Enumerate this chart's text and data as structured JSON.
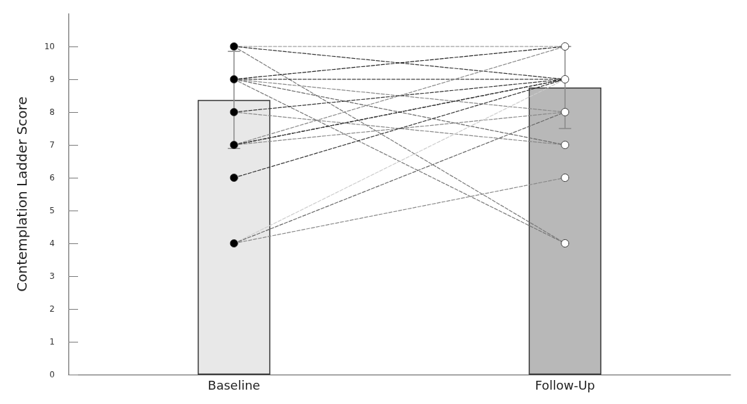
{
  "chart_data": {
    "type": "bar",
    "ylabel": "Contemplation Ladder Score",
    "categories": [
      "Baseline",
      "Follow-Up"
    ],
    "ylim": [
      0,
      11
    ],
    "yticks": [
      0,
      1,
      2,
      3,
      4,
      5,
      6,
      7,
      8,
      9,
      10
    ],
    "grid": false,
    "series": [
      {
        "colors": [
          "#e8e8e8",
          "#b8b8b8"
        ],
        "values": [
          8.37,
          8.75
        ],
        "errors": [
          1.48,
          1.25
        ]
      },
      {
        "type": "line",
        "color": "#888888",
        "values": [
          10,
          10
        ],
        "line_style": "dashed",
        "marker": "none"
      },
      {
        "type": "line",
        "color": "#333333",
        "values": [
          10,
          9
        ],
        "line_style": "dashed",
        "marker": "none"
      },
      {
        "type": "line",
        "color": "#777777",
        "values": [
          10,
          4
        ],
        "line_style": "dashed",
        "marker": "none"
      },
      {
        "type": "line",
        "color": "#222222",
        "values": [
          9,
          10
        ],
        "line_style": "dashed",
        "marker": "none"
      },
      {
        "type": "line",
        "color": "#111111",
        "values": [
          9,
          9
        ],
        "line_style": "dashed",
        "marker": "none"
      },
      {
        "type": "line",
        "color": "#888888",
        "values": [
          9,
          8
        ],
        "line_style": "dashed",
        "marker": "none"
      },
      {
        "type": "line",
        "color": "#666666",
        "values": [
          9,
          7
        ],
        "line_style": "dashed",
        "marker": "none"
      },
      {
        "type": "line",
        "color": "#777777",
        "values": [
          9,
          4
        ],
        "line_style": "dashed",
        "marker": "none"
      },
      {
        "type": "line",
        "color": "#333333",
        "values": [
          8,
          9
        ],
        "line_style": "dashed",
        "marker": "none"
      },
      {
        "type": "line",
        "color": "#888888",
        "values": [
          8,
          7
        ],
        "line_style": "dashed",
        "marker": "none"
      },
      {
        "type": "line",
        "color": "#888888",
        "values": [
          7,
          10
        ],
        "line_style": "dashed",
        "marker": "none"
      },
      {
        "type": "line",
        "color": "#111111",
        "values": [
          7,
          9
        ],
        "line_style": "dashed",
        "marker": "none"
      },
      {
        "type": "line",
        "color": "#444444",
        "values": [
          7,
          9
        ],
        "line_style": "dashed",
        "marker": "none"
      },
      {
        "type": "line",
        "color": "#888888",
        "values": [
          7,
          8
        ],
        "line_style": "dashed",
        "marker": "none"
      },
      {
        "type": "line",
        "color": "#333333",
        "values": [
          6,
          9
        ],
        "line_style": "dashed",
        "marker": "none"
      },
      {
        "type": "line",
        "color": "#cccccc",
        "values": [
          4,
          9
        ],
        "line_style": "dashed",
        "marker": "none"
      },
      {
        "type": "line",
        "color": "#666666",
        "values": [
          4,
          8
        ],
        "line_style": "dashed",
        "marker": "none"
      },
      {
        "type": "line",
        "color": "#888888",
        "values": [
          4,
          6
        ],
        "line_style": "dashed",
        "marker": "none"
      },
      {
        "type": "scatter",
        "color": "#000000",
        "x": [
          "Baseline",
          "Baseline",
          "Baseline",
          "Baseline",
          "Baseline",
          "Baseline"
        ],
        "values": [
          10,
          9,
          8,
          7,
          6,
          4
        ],
        "marker": "circle"
      },
      {
        "type": "scatter",
        "color": "#ffffff",
        "x": [
          "Follow-Up",
          "Follow-Up",
          "Follow-Up",
          "Follow-Up",
          "Follow-Up",
          "Follow-Up"
        ],
        "values": [
          10,
          9,
          8,
          7,
          6,
          4
        ],
        "marker": "circle"
      }
    ]
  }
}
